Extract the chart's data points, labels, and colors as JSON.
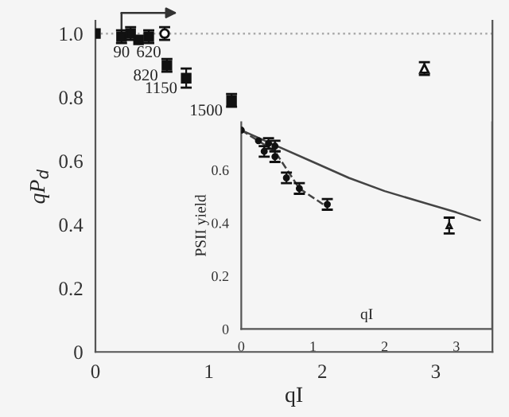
{
  "chart_data": [
    {
      "type": "scatter",
      "xlabel": "qI",
      "ylabel": "qP$_{d}$",
      "xlim": [
        0,
        3.5
      ],
      "ylim": [
        0,
        1.04
      ],
      "xticks": [
        0,
        1,
        2,
        3
      ],
      "yticks": [
        0,
        {
          "value": 0.2,
          "label": "0.2"
        },
        {
          "value": 0.4,
          "label": "0.4"
        },
        {
          "value": 0.6,
          "label": "0.6"
        },
        {
          "value": 0.8,
          "label": "0.8"
        },
        {
          "value": 1.0,
          "label": "1.0"
        }
      ],
      "grid": false,
      "legend": false,
      "series": [
        {
          "type": "scatter",
          "marker": "square",
          "color": "#111111",
          "x": [
            0,
            0.23,
            0.31,
            0.38,
            0.47,
            0.63,
            0.8,
            1.2
          ],
          "values": [
            1.0,
            0.99,
            1.0,
            0.98,
            0.99,
            0.9,
            0.86,
            0.79
          ],
          "errors": [
            null,
            0.02,
            0.02,
            null,
            0.02,
            0.02,
            0.03,
            0.02
          ]
        },
        {
          "type": "scatter",
          "marker": "circle",
          "color": "#111111",
          "x": [
            0.61
          ],
          "values": [
            1.0
          ],
          "errors": [
            0.02
          ]
        },
        {
          "type": "scatter",
          "marker": "triangle",
          "color": "#111111",
          "x": [
            2.9
          ],
          "values": [
            0.89
          ],
          "errors": [
            0.02
          ]
        }
      ],
      "ref_lines": [
        {
          "axis": "y",
          "value": 1.0,
          "color": "#aaaaaa",
          "line_style": "dotted"
        }
      ],
      "annotations": [
        {
          "text": "90",
          "x": 0.23,
          "y": 0.99
        },
        {
          "text": "620",
          "x": 0.47,
          "y": 0.99
        },
        {
          "text": "820",
          "x": 0.63,
          "y": 0.9
        },
        {
          "text": "1150",
          "x": 0.8,
          "y": 0.86
        },
        {
          "text": "1500",
          "x": 1.2,
          "y": 0.79
        }
      ]
    },
    {
      "type": "scatter",
      "xlabel": "qI",
      "ylabel": "PSII yield",
      "xlim": [
        0,
        3.5
      ],
      "ylim": [
        0,
        0.78
      ],
      "xticks": [
        0,
        1,
        2,
        3
      ],
      "yticks": [
        0,
        {
          "value": 0.2,
          "label": "0.2"
        },
        {
          "value": 0.4,
          "label": "0.4"
        },
        {
          "value": 0.6,
          "label": "0.6"
        }
      ],
      "grid": false,
      "legend": false,
      "series": [
        {
          "type": "line",
          "marker": "none",
          "line_style": "solid",
          "color": "#444444",
          "x": [
            0,
            0.5,
            1,
            1.5,
            2,
            2.5,
            3,
            3.33
          ],
          "values": [
            0.75,
            0.69,
            0.63,
            0.57,
            0.52,
            0.48,
            0.44,
            0.41
          ]
        },
        {
          "type": "line",
          "marker": "none",
          "line_style": "dashed",
          "color": "#444444",
          "x": [
            0,
            0.47,
            0.81,
            1.2
          ],
          "values": [
            0.75,
            0.67,
            0.53,
            0.46
          ]
        },
        {
          "type": "scatter",
          "marker": "circle",
          "color": "#111111",
          "x": [
            0,
            0.24,
            0.32,
            0.38,
            0.47,
            0.47,
            0.63,
            0.81,
            1.2
          ],
          "values": [
            0.75,
            0.71,
            0.67,
            0.7,
            0.69,
            0.65,
            0.57,
            0.53,
            0.47
          ],
          "errors": [
            null,
            null,
            0.02,
            0.02,
            0.02,
            0.02,
            0.02,
            0.02,
            0.02
          ]
        },
        {
          "type": "scatter",
          "marker": "triangle",
          "color": "#111111",
          "x": [
            2.9
          ],
          "values": [
            0.39
          ],
          "errors": [
            0.03
          ]
        }
      ]
    }
  ]
}
